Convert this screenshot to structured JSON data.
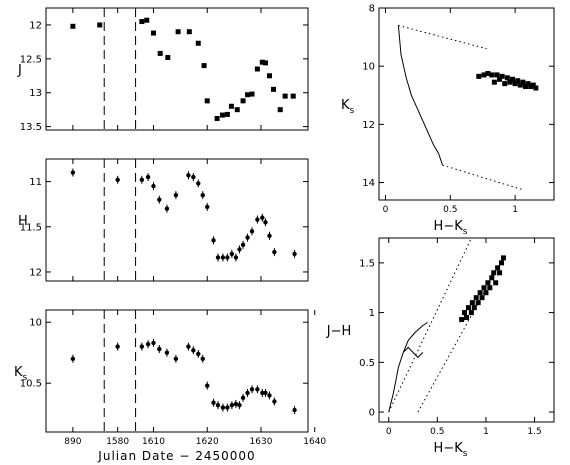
{
  "colors": {
    "ink": "#000000",
    "background": "#ffffff"
  },
  "chart_data": [
    {
      "id": "lc-j",
      "type": "scatter",
      "ylabel": "J",
      "xlabel": "",
      "y_inverted": true,
      "ylim": [
        11.75,
        13.55
      ],
      "yticks": [
        "12",
        "12.5",
        "13",
        "13.5"
      ],
      "ytick_values": [
        12,
        12.5,
        13,
        13.5
      ],
      "x_axis": "broken",
      "xtick_values": [],
      "dashed_markers": [
        1577.0,
        1584.0
      ],
      "series": [
        {
          "marker": "square",
          "error_bars": false,
          "x": [
            1570.0,
            1576.0,
            1585.4,
            1586.5,
            1588.0,
            1589.5,
            1591.2,
            1593.5,
            1596.0,
            1598.0,
            1599.3,
            1600.0,
            1602.2,
            1603.4,
            1604.5,
            1605.4,
            1606.7,
            1608.0,
            1609.0,
            1610.0,
            1611.2,
            1612.3,
            1613.0,
            1613.9,
            1614.8,
            1616.3,
            1617.4,
            1619.2
          ],
          "y": [
            12.02,
            12.0,
            11.95,
            11.93,
            12.12,
            12.42,
            12.48,
            12.1,
            12.1,
            12.27,
            12.6,
            13.12,
            13.38,
            13.33,
            13.32,
            13.2,
            13.25,
            13.12,
            13.03,
            13.02,
            12.65,
            12.55,
            12.56,
            12.75,
            12.95,
            13.25,
            13.05,
            13.05
          ]
        }
      ]
    },
    {
      "id": "lc-h",
      "type": "scatter",
      "ylabel": "H",
      "xlabel": "",
      "y_inverted": true,
      "ylim": [
        10.75,
        12.1
      ],
      "yticks": [
        "11",
        "11.5",
        "12"
      ],
      "ytick_values": [
        11,
        11.5,
        12
      ],
      "x_axis": "broken",
      "xtick_values": [],
      "dashed_markers": [
        1577.0,
        1584.0
      ],
      "series": [
        {
          "marker": "point",
          "error_bars": true,
          "x": [
            1570.0,
            1580.0,
            1585.4,
            1586.8,
            1588.0,
            1589.3,
            1591.0,
            1593.0,
            1595.8,
            1596.9,
            1598.0,
            1599.0,
            1600.0,
            1601.4,
            1602.4,
            1603.5,
            1604.5,
            1605.5,
            1606.4,
            1607.2,
            1608.0,
            1609.0,
            1610.0,
            1611.2,
            1612.3,
            1613.0,
            1613.9,
            1615.0,
            1619.5
          ],
          "y": [
            10.9,
            10.98,
            10.98,
            10.95,
            11.05,
            11.2,
            11.3,
            11.15,
            10.93,
            10.95,
            11.02,
            11.15,
            11.28,
            11.65,
            11.84,
            11.84,
            11.84,
            11.8,
            11.84,
            11.75,
            11.7,
            11.62,
            11.55,
            11.42,
            11.4,
            11.45,
            11.6,
            11.78,
            11.8
          ]
        }
      ]
    },
    {
      "id": "lc-k",
      "type": "scatter",
      "ylabel": "Ks",
      "ylabel_main": "K",
      "ylabel_sub": "s",
      "xlabel": "Julian Date − 2450000",
      "y_inverted": true,
      "ylim": [
        9.9,
        10.9
      ],
      "yticks": [
        "10",
        "10.5"
      ],
      "ytick_values": [
        10,
        10.5
      ],
      "x_axis": "broken",
      "xticks": [
        "890",
        "1580",
        "1610",
        "1620",
        "1630",
        "1640"
      ],
      "xtick_values": [
        1570,
        1580,
        1588,
        1600,
        1612,
        1624
      ],
      "dashed_markers": [
        1577.0,
        1584.0
      ],
      "series": [
        {
          "marker": "point",
          "error_bars": true,
          "x": [
            1570.0,
            1580.0,
            1585.4,
            1586.8,
            1588.0,
            1589.3,
            1591.0,
            1593.0,
            1595.8,
            1596.9,
            1598.0,
            1599.0,
            1600.0,
            1601.4,
            1602.4,
            1603.5,
            1604.5,
            1605.5,
            1606.4,
            1607.2,
            1608.0,
            1609.0,
            1610.0,
            1611.2,
            1612.3,
            1613.0,
            1613.9,
            1615.0,
            1619.5
          ],
          "y": [
            10.3,
            10.2,
            10.2,
            10.18,
            10.17,
            10.22,
            10.25,
            10.3,
            10.2,
            10.23,
            10.26,
            10.3,
            10.52,
            10.66,
            10.68,
            10.7,
            10.7,
            10.68,
            10.67,
            10.68,
            10.62,
            10.58,
            10.55,
            10.55,
            10.58,
            10.58,
            10.6,
            10.65,
            10.72
          ]
        }
      ]
    },
    {
      "id": "cmd",
      "type": "scatter",
      "xlabel": "H−Ks",
      "xlabel_main": "H−K",
      "xlabel_sub": "s",
      "ylabel": "Ks",
      "ylabel_main": "K",
      "ylabel_sub": "s",
      "y_inverted": true,
      "xlim": [
        -0.05,
        1.3
      ],
      "ylim": [
        8.0,
        14.6
      ],
      "xticks": [
        "0",
        "0.5",
        "1"
      ],
      "xtick_values": [
        0,
        0.5,
        1
      ],
      "yticks": [
        "8",
        "10",
        "12",
        "14"
      ],
      "ytick_values": [
        8,
        10,
        12,
        14
      ],
      "lines": [
        {
          "style": "solid",
          "x": [
            0.1,
            0.12,
            0.16,
            0.2,
            0.26,
            0.32,
            0.37,
            0.41,
            0.44
          ],
          "y": [
            8.6,
            9.6,
            10.4,
            11.0,
            11.6,
            12.2,
            12.7,
            13.0,
            13.4
          ]
        },
        {
          "style": "dotted",
          "x": [
            0.1,
            0.78
          ],
          "y": [
            8.6,
            9.4
          ]
        },
        {
          "style": "dotted",
          "x": [
            0.44,
            1.06
          ],
          "y": [
            13.4,
            14.25
          ]
        }
      ],
      "series": [
        {
          "marker": "square",
          "error_bars": false,
          "x": [
            0.72,
            0.76,
            0.79,
            0.82,
            0.84,
            0.86,
            0.88,
            0.9,
            0.92,
            0.94,
            0.96,
            0.98,
            1.0,
            1.02,
            1.04,
            1.06,
            1.08,
            1.1,
            1.12,
            1.14,
            1.16
          ],
          "y": [
            10.35,
            10.3,
            10.25,
            10.3,
            10.55,
            10.3,
            10.45,
            10.35,
            10.6,
            10.4,
            10.55,
            10.45,
            10.6,
            10.5,
            10.65,
            10.55,
            10.7,
            10.6,
            10.7,
            10.65,
            10.75
          ]
        }
      ]
    },
    {
      "id": "ccd",
      "type": "scatter",
      "xlabel": "H−Ks",
      "xlabel_main": "H−K",
      "xlabel_sub": "s",
      "ylabel": "J−H",
      "xlim": [
        -0.1,
        1.7
      ],
      "ylim": [
        -0.1,
        1.75
      ],
      "xticks": [
        "0",
        "0.5",
        "1",
        "1.5"
      ],
      "xtick_values": [
        0,
        0.5,
        1,
        1.5
      ],
      "yticks": [
        "0",
        "0.5",
        "1",
        "1.5"
      ],
      "ytick_values": [
        0,
        0.5,
        1,
        1.5
      ],
      "lines": [
        {
          "style": "solid",
          "x": [
            0.0,
            0.05,
            0.1,
            0.15,
            0.2,
            0.27,
            0.35,
            0.4
          ],
          "y": [
            0.0,
            0.2,
            0.45,
            0.6,
            0.72,
            0.8,
            0.87,
            0.9
          ]
        },
        {
          "style": "solid",
          "x": [
            0.15,
            0.2,
            0.25,
            0.3,
            0.35
          ],
          "y": [
            0.6,
            0.65,
            0.6,
            0.55,
            0.6
          ]
        },
        {
          "style": "dotted",
          "x": [
            0.0,
            0.85
          ],
          "y": [
            0.0,
            1.75
          ]
        },
        {
          "style": "dotted",
          "x": [
            0.3,
            1.15
          ],
          "y": [
            0.0,
            1.5
          ]
        }
      ],
      "series": [
        {
          "marker": "square",
          "error_bars": false,
          "x": [
            0.75,
            0.78,
            0.8,
            0.82,
            0.85,
            0.86,
            0.88,
            0.9,
            0.92,
            0.94,
            0.96,
            0.98,
            1.0,
            1.02,
            1.04,
            1.06,
            1.08,
            1.1,
            1.12,
            1.14,
            1.16,
            1.18
          ],
          "y": [
            0.93,
            1.0,
            0.95,
            1.05,
            1.0,
            1.1,
            1.05,
            1.15,
            1.1,
            1.2,
            1.15,
            1.25,
            1.2,
            1.3,
            1.25,
            1.35,
            1.4,
            1.3,
            1.45,
            1.4,
            1.5,
            1.55
          ]
        }
      ]
    }
  ]
}
